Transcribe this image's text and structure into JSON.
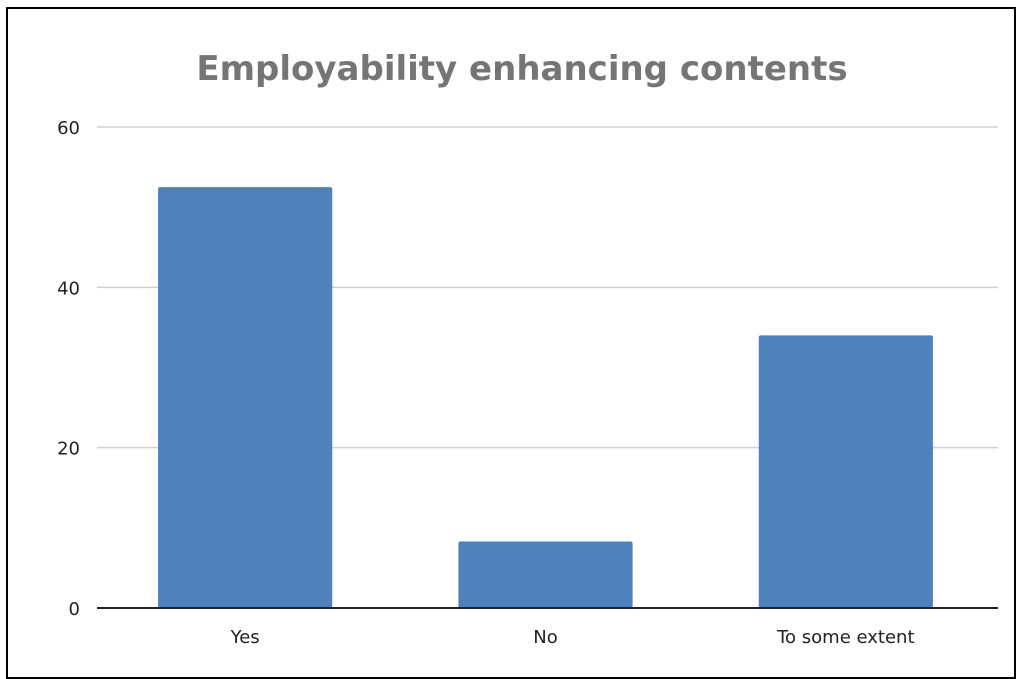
{
  "chart_data": {
    "type": "bar",
    "title": "Employability enhancing contents",
    "xlabel": "",
    "ylabel": "",
    "categories": [
      "Yes",
      "No",
      "To some extent"
    ],
    "values": [
      52.5,
      8.3,
      34
    ],
    "ylim": [
      0,
      60
    ],
    "yticks": [
      0,
      20,
      40,
      60
    ],
    "grid": true,
    "legend": "none",
    "bar_color": "#4f81bd",
    "grid_color": "#d0d0d0",
    "axis_color": "#222222",
    "title_color": "#757575"
  }
}
